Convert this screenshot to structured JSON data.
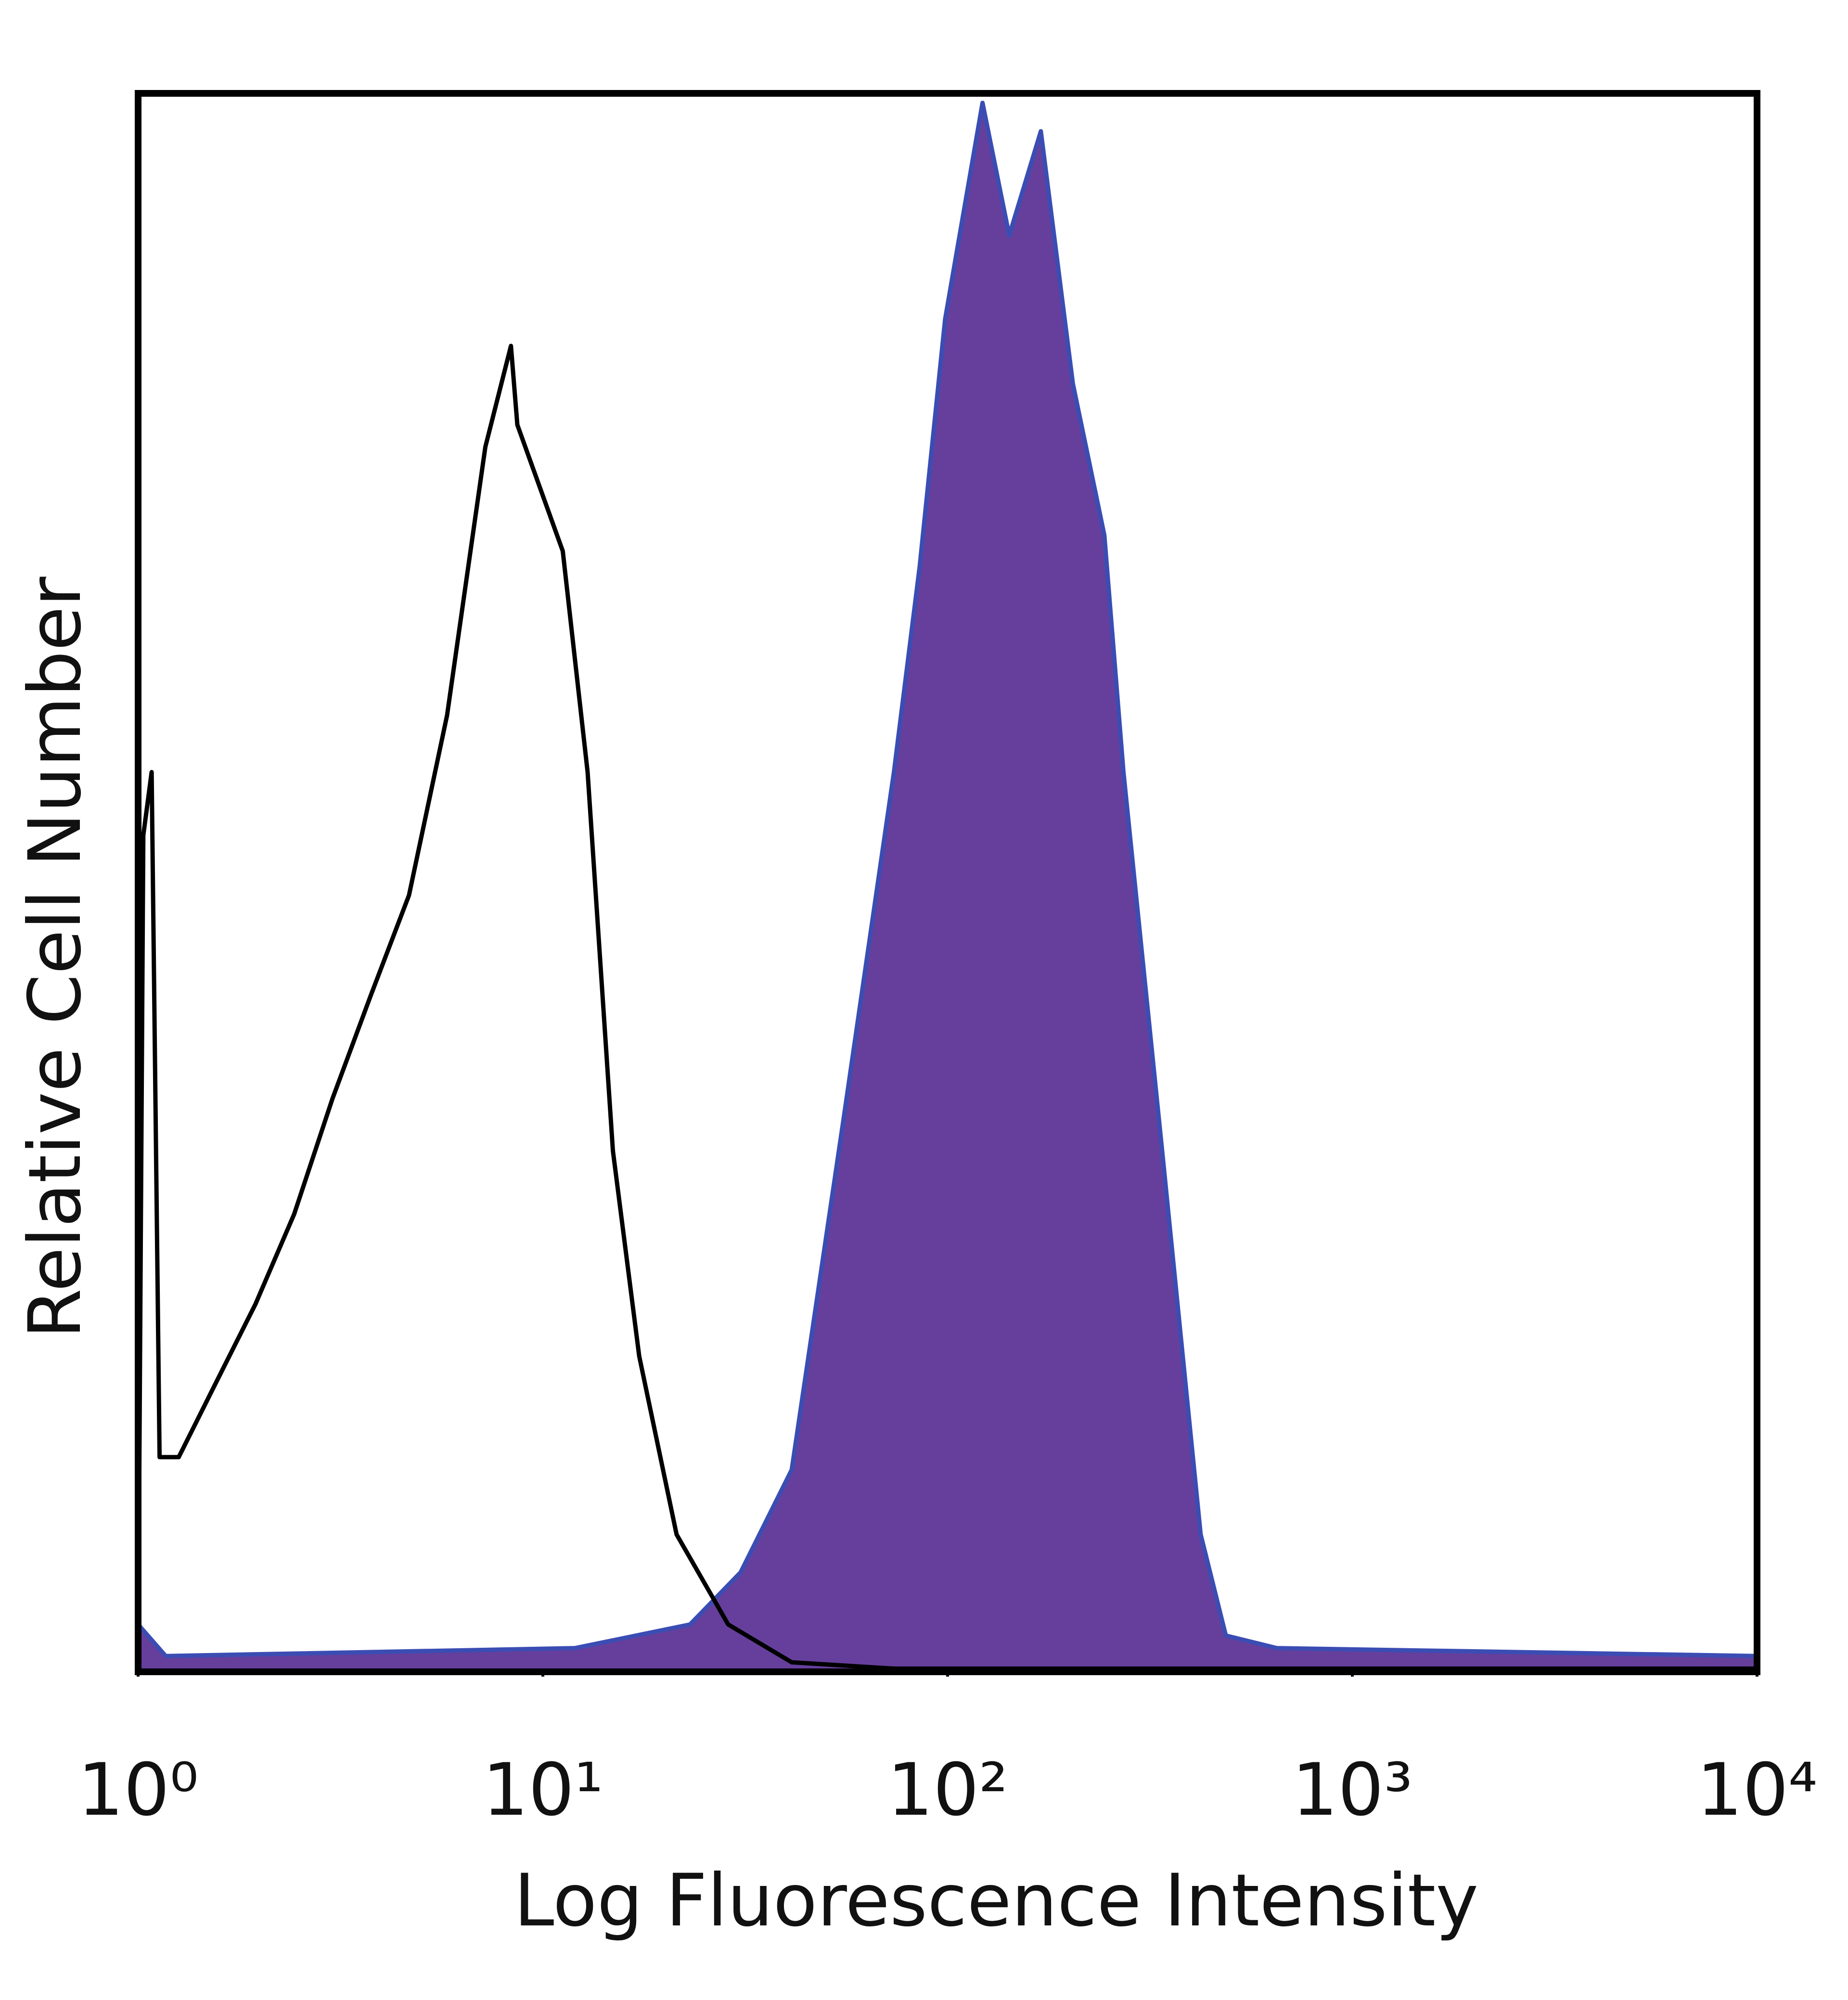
{
  "chart_data": {
    "type": "histogram-overlay",
    "x_label": "Log Fluorescence Intensity",
    "y_label": "Relative Cell Number",
    "log_x": true,
    "xlim": [
      1,
      10000
    ],
    "ylim": [
      0,
      100
    ],
    "xticks": [
      {
        "value": 1,
        "label": "10⁰"
      },
      {
        "value": 10,
        "label": "10¹"
      },
      {
        "value": 100,
        "label": "10²"
      },
      {
        "value": 1000,
        "label": "10³"
      },
      {
        "value": 10000,
        "label": "10⁴"
      }
    ],
    "series": [
      {
        "color": "#3b4db3",
        "fill": "#663f9c",
        "filled": true,
        "x": [
          1,
          1.17,
          12.0,
          23.1,
          30.8,
          41.2,
          55.1,
          73.7,
          85.3,
          98.6,
          122,
          142,
          170,
          204,
          244,
          272,
          339,
          422,
          487,
          651,
          10000
        ],
        "values": [
          3,
          1,
          1.5,
          3,
          6.3,
          12.8,
          34.7,
          57,
          70,
          85.7,
          99.4,
          91,
          97.6,
          81.6,
          72,
          57,
          33,
          8.7,
          2.3,
          1.5,
          1
        ]
      },
      {
        "color": "#000000",
        "filled": false,
        "x": [
          1,
          1.03,
          1.08,
          1.13,
          1.26,
          1.57,
          1.95,
          2.43,
          3.02,
          3.75,
          4.67,
          5.8,
          7.21,
          8.34,
          8.65,
          11.2,
          12.9,
          14.9,
          17.3,
          21.4,
          28.7,
          41.2,
          73.7,
          10000
        ],
        "values": [
          0.6,
          53,
          57,
          13.6,
          13.6,
          18.5,
          23.3,
          29,
          36.3,
          42.8,
          49.2,
          60.6,
          77.6,
          84,
          79,
          71,
          57,
          33,
          20,
          8.7,
          3,
          0.6,
          0.2,
          0.2
        ]
      }
    ]
  }
}
